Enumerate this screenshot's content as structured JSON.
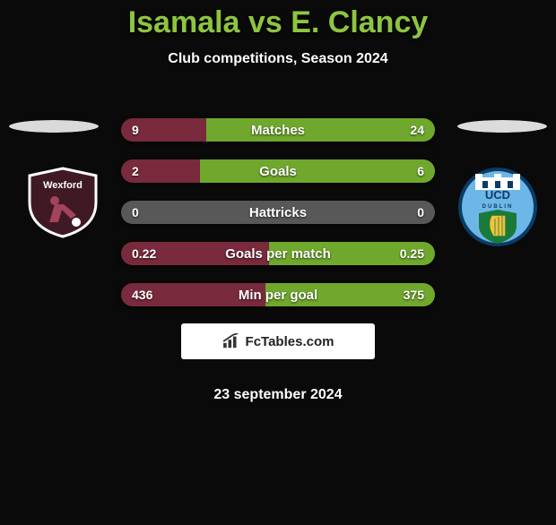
{
  "title_color": "#8dc53f",
  "player_a": "Isamala",
  "vs": "vs",
  "player_b": "E. Clancy",
  "subtitle": "Club competitions, Season 2024",
  "date_text": "23 september 2024",
  "colors": {
    "left_fill": "#792a3c",
    "right_fill": "#6fa82c",
    "center_neutral": "#585858"
  },
  "bars": [
    {
      "label": "Matches",
      "left": "9",
      "right": "24",
      "left_pct": 27,
      "right_pct": 73
    },
    {
      "label": "Goals",
      "left": "2",
      "right": "6",
      "left_pct": 25,
      "right_pct": 75
    },
    {
      "label": "Hattricks",
      "left": "0",
      "right": "0",
      "left_pct": 0,
      "right_pct": 0
    },
    {
      "label": "Goals per match",
      "left": "0.22",
      "right": "0.25",
      "left_pct": 47,
      "right_pct": 53
    },
    {
      "label": "Min per goal",
      "left": "436",
      "right": "375",
      "left_pct": 46,
      "right_pct": 54
    }
  ],
  "flags": {
    "left_top_color": "#dadada",
    "left_bottom_color": "#d8d8d8",
    "right_top_color": "#dcdcdc",
    "right_bottom_color": "#dcdcdc"
  },
  "crest_left": {
    "name": "Wexford",
    "shield_fill": "#3f1a25",
    "shield_stroke": "#ffffff",
    "player_fill": "#a3435c",
    "ball_fill": "#ffffff"
  },
  "crest_right": {
    "name": "UCD",
    "sub": "DUBLIN",
    "circle_fill": "#6db7e8",
    "circle_stroke": "#0b3c66",
    "castle_fill": "#ffffff",
    "harp_fill": "#f3c33c",
    "harp_stroke": "#1a7a3a",
    "shield_fill": "#1a7a3a"
  },
  "badge": {
    "text": "FcTables.com",
    "icon_color": "#333333"
  }
}
